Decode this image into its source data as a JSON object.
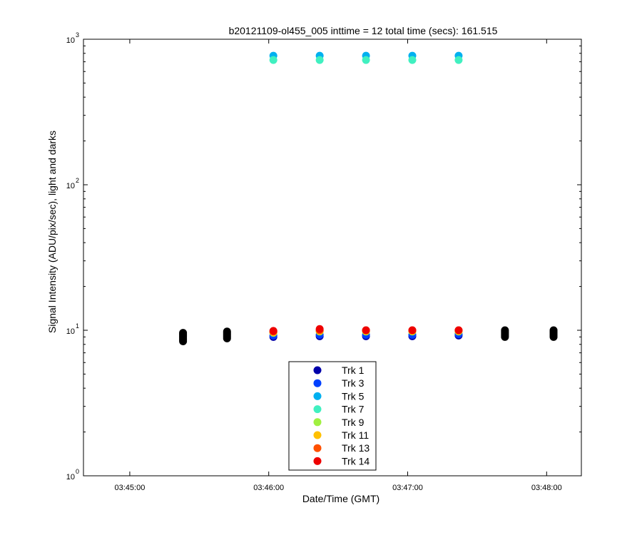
{
  "chart_data": {
    "type": "scatter",
    "title": "b20121109-ol455_005 inttime = 12 total time (secs): 161.515",
    "xlabel": "Date/Time (GMT)",
    "ylabel": "Signal Intensity (ADU/pix/sec), light and darks",
    "yscale": "log",
    "xlim": [
      "03:44:40",
      "03:48:15"
    ],
    "ylim": [
      1,
      1000
    ],
    "xticks": [
      "03:45:00",
      "03:46:00",
      "03:47:00",
      "03:48:00"
    ],
    "yticks": [
      {
        "base": "10",
        "exp": "0",
        "value": 1
      },
      {
        "base": "10",
        "exp": "1",
        "value": 10
      },
      {
        "base": "10",
        "exp": "2",
        "value": 100
      },
      {
        "base": "10",
        "exp": "3",
        "value": 1000
      }
    ],
    "grid": false,
    "legend_position": "bottom-center",
    "light_times": [
      "03:46:02",
      "03:46:22",
      "03:46:42",
      "03:47:02",
      "03:47:22"
    ],
    "dark_times": [
      "03:45:23",
      "03:45:42",
      "03:47:42",
      "03:48:03"
    ],
    "dark_series": {
      "color": "#000000",
      "values": [
        [
          8.4,
          8.6,
          8.8,
          9.0,
          9.2,
          9.4,
          9.6
        ],
        [
          8.8,
          9.0,
          9.2,
          9.4,
          9.6,
          9.8
        ],
        [
          9.0,
          9.2,
          9.4,
          9.6,
          9.8,
          10.0
        ],
        [
          9.0,
          9.2,
          9.4,
          9.6,
          9.8,
          10.0
        ]
      ]
    },
    "series": [
      {
        "name": "Trk 1",
        "color": "#0000AA",
        "values": [
          9.0,
          9.1,
          9.1,
          9.1,
          9.2
        ]
      },
      {
        "name": "Trk 3",
        "color": "#0040FF",
        "values": [
          9.2,
          9.3,
          9.3,
          9.3,
          9.4
        ]
      },
      {
        "name": "Trk 5",
        "color": "#00B0F0",
        "values": [
          770,
          770,
          770,
          770,
          770
        ]
      },
      {
        "name": "Trk 7",
        "color": "#40F0C0",
        "values": [
          720,
          720,
          720,
          720,
          720
        ]
      },
      {
        "name": "Trk 9",
        "color": "#A0F040",
        "values": [
          9.6,
          9.8,
          9.8,
          9.8,
          9.8
        ]
      },
      {
        "name": "Trk 11",
        "color": "#FFC000",
        "values": [
          9.7,
          9.9,
          9.9,
          9.9,
          9.9
        ]
      },
      {
        "name": "Trk 13",
        "color": "#FF5000",
        "values": [
          9.8,
          10.0,
          10.0,
          10.0,
          10.0
        ]
      },
      {
        "name": "Trk 14",
        "color": "#EE0000",
        "values": [
          9.9,
          10.2,
          10.0,
          10.0,
          10.0
        ]
      }
    ]
  }
}
